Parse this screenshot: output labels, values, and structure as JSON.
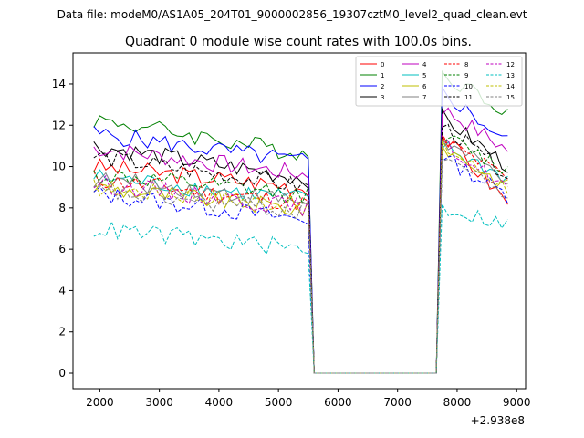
{
  "chart_data": {
    "type": "line",
    "supertitle": "Data file: modeM0/AS1A05_204T01_9000002856_19307cztM0_level2_quad_clean.evt",
    "title": "Quadrant 0 module wise count rates with 100.0s bins.",
    "xlabel": "",
    "ylabel": "",
    "x_offset_label": "+2.938e8",
    "xlim": [
      1550,
      9150
    ],
    "ylim": [
      -0.75,
      15.5
    ],
    "x_ticks": [
      2000,
      3000,
      4000,
      5000,
      6000,
      7000,
      8000,
      9000
    ],
    "y_ticks": [
      0,
      2,
      4,
      6,
      8,
      10,
      12,
      14
    ],
    "legend_position": "top-right",
    "series": [
      {
        "name": "0",
        "color": "#ff0000",
        "dash": "solid",
        "level1": 10.0,
        "end1": 9.0,
        "level2": 11.5,
        "end2": 8.3
      },
      {
        "name": "1",
        "color": "#008000",
        "dash": "solid",
        "level1": 12.3,
        "end1": 10.6,
        "level2": 14.5,
        "end2": 12.7
      },
      {
        "name": "2",
        "color": "#0000ff",
        "dash": "solid",
        "level1": 11.6,
        "end1": 10.2,
        "level2": 13.6,
        "end2": 11.2
      },
      {
        "name": "3",
        "color": "#000000",
        "dash": "solid",
        "level1": 11.0,
        "end1": 9.4,
        "level2": 12.4,
        "end2": 10.0
      },
      {
        "name": "4",
        "color": "#bf00bf",
        "dash": "solid",
        "level1": 10.9,
        "end1": 9.6,
        "level2": 12.8,
        "end2": 10.8
      },
      {
        "name": "5",
        "color": "#00bfbf",
        "dash": "solid",
        "level1": 9.5,
        "end1": 8.4,
        "level2": 11.0,
        "end2": 9.4
      },
      {
        "name": "6",
        "color": "#bfbf00",
        "dash": "solid",
        "level1": 9.0,
        "end1": 7.9,
        "level2": 11.0,
        "end2": 9.0
      },
      {
        "name": "7",
        "color": "#808080",
        "dash": "solid",
        "level1": 9.4,
        "end1": 8.3,
        "level2": 11.2,
        "end2": 9.4
      },
      {
        "name": "8",
        "color": "#ff0000",
        "dash": "dashed",
        "level1": 9.4,
        "end1": 8.2,
        "level2": 11.3,
        "end2": 9.4
      },
      {
        "name": "9",
        "color": "#008000",
        "dash": "dashed",
        "level1": 9.6,
        "end1": 8.6,
        "level2": 11.5,
        "end2": 9.8
      },
      {
        "name": "10",
        "color": "#0000ff",
        "dash": "dashed",
        "level1": 8.7,
        "end1": 7.4,
        "level2": 10.5,
        "end2": 8.6
      },
      {
        "name": "11",
        "color": "#000000",
        "dash": "dashed",
        "level1": 10.5,
        "end1": 9.0,
        "level2": 12.0,
        "end2": 9.6
      },
      {
        "name": "12",
        "color": "#bf00bf",
        "dash": "dashed",
        "level1": 9.2,
        "end1": 8.0,
        "level2": 11.1,
        "end2": 9.0
      },
      {
        "name": "13",
        "color": "#00bfbf",
        "dash": "dashed",
        "level1": 7.0,
        "end1": 6.0,
        "level2": 8.0,
        "end2": 7.2
      },
      {
        "name": "14",
        "color": "#bfbf00",
        "dash": "dashed",
        "level1": 9.0,
        "end1": 8.1,
        "level2": 11.0,
        "end2": 9.0
      },
      {
        "name": "15",
        "color": "#808080",
        "dash": "dashed",
        "level1": 8.8,
        "end1": 7.8,
        "level2": 10.6,
        "end2": 8.6
      }
    ],
    "segments": {
      "first_start": 1900,
      "first_end": 5500,
      "drop_to_zero_at": 5600,
      "zero_until": 7650,
      "second_start": 7750,
      "second_end": 8800
    }
  }
}
